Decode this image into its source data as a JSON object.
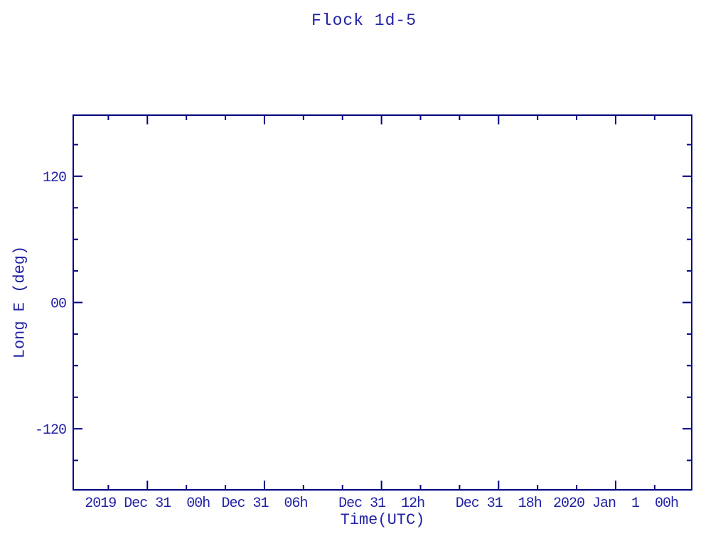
{
  "title": "Flock 1d-5",
  "colors": {
    "axis_line": "#000080",
    "text": "#2222a4",
    "background": "#ffffff"
  },
  "chart_data": {
    "type": "line",
    "title": "Flock 1d-5",
    "xlabel": "Time(UTC)",
    "ylabel": "Long E (deg)",
    "legend": "none",
    "grid": false,
    "note": "empty plot area - no data series drawn",
    "x_axis": {
      "unit": "hours relative to 2019 Dec 31 00:00 UTC",
      "range": [
        -3.8,
        27.9
      ],
      "major_ticks": [
        {
          "pos": 0,
          "label": "2019 Dec 31  00h"
        },
        {
          "pos": 6,
          "label": "Dec 31  06h"
        },
        {
          "pos": 12,
          "label": "Dec 31  12h"
        },
        {
          "pos": 18,
          "label": "Dec 31  18h"
        },
        {
          "pos": 24,
          "label": "2020 Jan  1  00h"
        }
      ],
      "minor_ticks": [
        -2,
        2,
        4,
        8,
        10,
        14,
        16,
        20,
        22,
        26
      ]
    },
    "y_axis": {
      "unit": "degrees East longitude",
      "range": [
        -178,
        178
      ],
      "major_ticks": [
        {
          "pos": 120,
          "label": "120"
        },
        {
          "pos": 0,
          "label": "00"
        },
        {
          "pos": -120,
          "label": "-120"
        }
      ],
      "minor_ticks": [
        150,
        90,
        60,
        30,
        -30,
        -60,
        -90,
        -150
      ]
    },
    "series": []
  }
}
